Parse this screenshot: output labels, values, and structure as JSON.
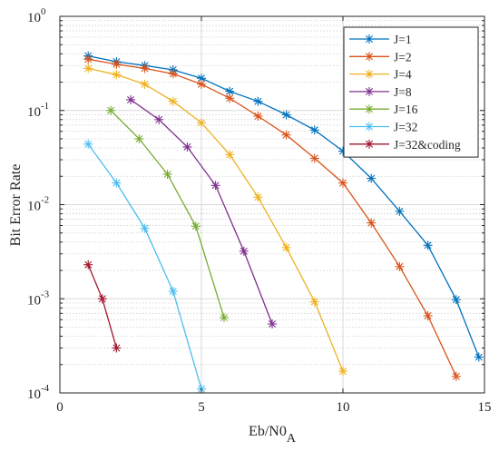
{
  "chart_data": {
    "type": "line",
    "xlabel": "Eb/N0",
    "xlabel_subscript": "A",
    "ylabel": "Bit Error Rate",
    "xlim": [
      0,
      15
    ],
    "ylim": [
      0.0001,
      1
    ],
    "yscale": "log",
    "x_ticks": [
      0,
      5,
      10,
      15
    ],
    "y_ticks": [
      {
        "value": 1,
        "base": "10",
        "exp": "0"
      },
      {
        "value": 0.1,
        "base": "10",
        "exp": "-1"
      },
      {
        "value": 0.01,
        "base": "10",
        "exp": "-2"
      },
      {
        "value": 0.001,
        "base": "10",
        "exp": "-3"
      },
      {
        "value": 0.0001,
        "base": "10",
        "exp": "-4"
      }
    ],
    "grid": true,
    "legend_position": "top-right",
    "marker": "asterisk",
    "series": [
      {
        "name": "J=1",
        "color": "#0072BD",
        "x": [
          1,
          2,
          3,
          4,
          5,
          6,
          7,
          8,
          9,
          10,
          11,
          12,
          13,
          14,
          14.8
        ],
        "y": [
          0.38,
          0.33,
          0.3,
          0.27,
          0.22,
          0.16,
          0.125,
          0.09,
          0.062,
          0.037,
          0.019,
          0.0085,
          0.0037,
          0.00098,
          0.00024
        ]
      },
      {
        "name": "J=2",
        "color": "#D95319",
        "x": [
          1,
          2,
          3,
          4,
          5,
          6,
          7,
          8,
          9,
          10,
          11,
          12,
          13,
          14
        ],
        "y": [
          0.35,
          0.31,
          0.28,
          0.245,
          0.19,
          0.135,
          0.087,
          0.055,
          0.031,
          0.017,
          0.0064,
          0.0022,
          0.00066,
          0.00015
        ]
      },
      {
        "name": "J=4",
        "color": "#EDB120",
        "x": [
          1,
          2,
          3,
          4,
          5,
          6,
          7,
          8,
          9,
          10
        ],
        "y": [
          0.28,
          0.24,
          0.19,
          0.125,
          0.074,
          0.034,
          0.012,
          0.0035,
          0.00093,
          0.00017
        ]
      },
      {
        "name": "J=8",
        "color": "#7E2F8E",
        "x": [
          2.5,
          3.5,
          4.5,
          5.5,
          6.5,
          7.5
        ],
        "y": [
          0.13,
          0.08,
          0.041,
          0.016,
          0.0032,
          0.00054
        ]
      },
      {
        "name": "J=16",
        "color": "#77AC30",
        "x": [
          1.8,
          2.8,
          3.8,
          4.8,
          5.8
        ],
        "y": [
          0.1,
          0.05,
          0.021,
          0.0059,
          0.00063
        ]
      },
      {
        "name": "J=32",
        "color": "#4DBEEE",
        "x": [
          1,
          2,
          3,
          4,
          5
        ],
        "y": [
          0.044,
          0.017,
          0.0056,
          0.0012,
          0.00011
        ]
      },
      {
        "name": "J=32&coding",
        "color": "#A2142F",
        "x": [
          1,
          1.5,
          2
        ],
        "y": [
          0.0023,
          0.001,
          0.0003
        ]
      }
    ]
  }
}
